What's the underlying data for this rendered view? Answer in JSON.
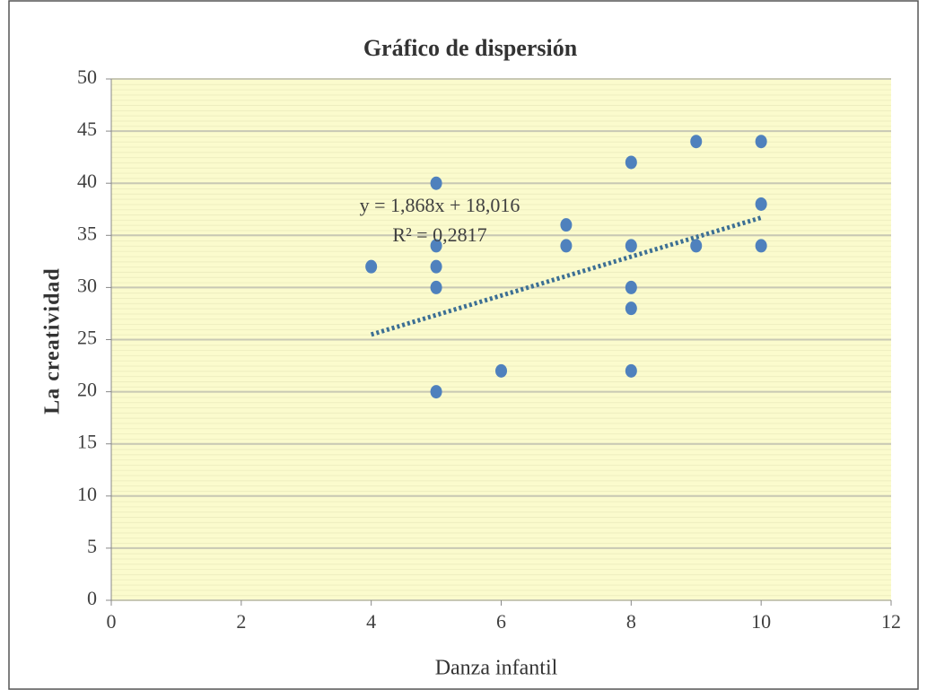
{
  "chart_data": {
    "type": "scatter",
    "title": "Gráfico de dispersión",
    "x_label": "Danza infantil",
    "y_label": "La creatividad",
    "series": [
      {
        "name": "La creatividad",
        "color": "#4f81bd",
        "x": [
          4,
          5,
          5,
          5,
          5,
          5,
          6,
          7,
          7,
          8,
          8,
          8,
          8,
          8,
          9,
          9,
          10,
          10,
          10
        ],
        "values": [
          32,
          40,
          34,
          32,
          30,
          20,
          22,
          36,
          34,
          42,
          34,
          30,
          28,
          22,
          44,
          34,
          44,
          38,
          34
        ]
      }
    ],
    "trendline": {
      "equation": "y = 1,868x + 18,016",
      "r_squared": "R² = 0,2817",
      "slope": 1.868,
      "intercept": 18.016,
      "color": "#3c6f94"
    },
    "xlim": [
      0,
      12
    ],
    "xticks": [
      0,
      2,
      4,
      6,
      8,
      10,
      12
    ],
    "ylim": [
      0,
      50
    ],
    "yticks": [
      0,
      5,
      10,
      15,
      20,
      25,
      30,
      35,
      40,
      45,
      50
    ],
    "grid": true
  }
}
